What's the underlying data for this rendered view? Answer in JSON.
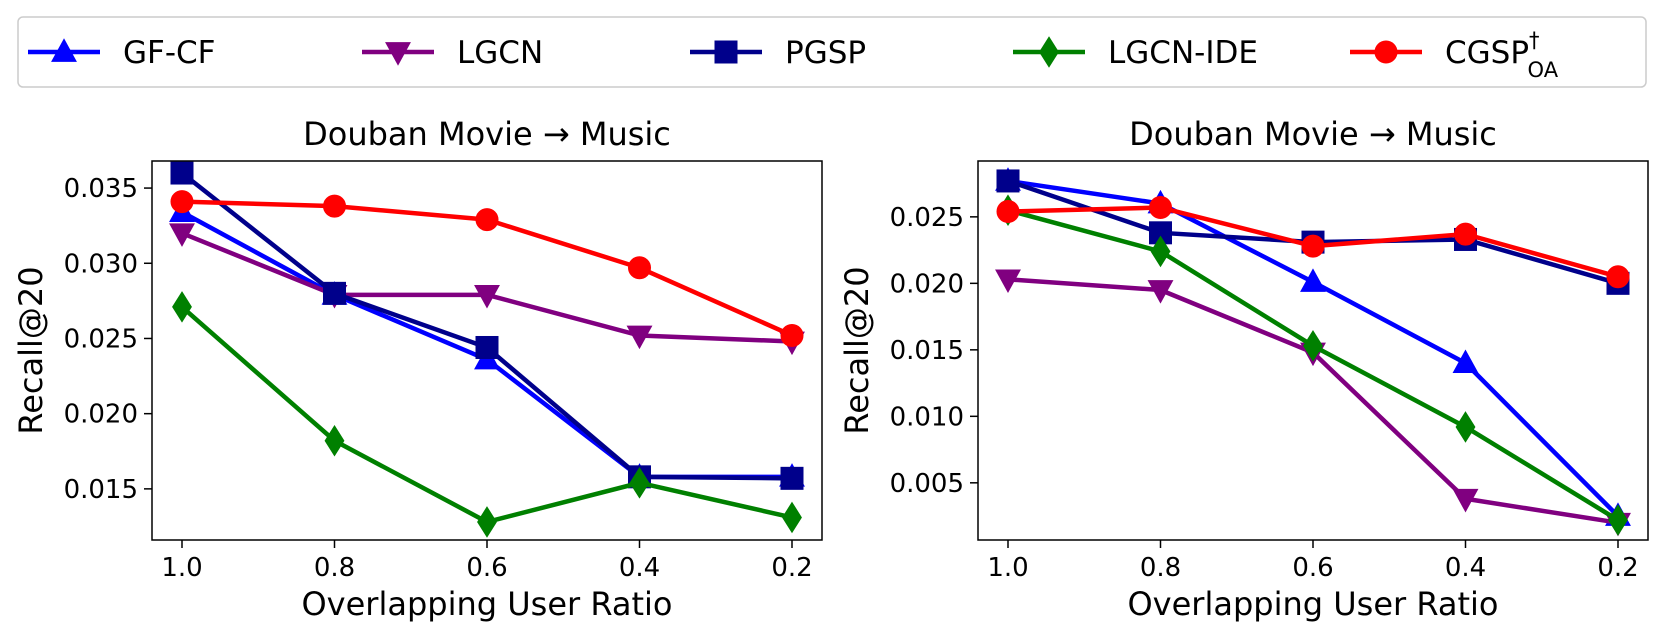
{
  "legend": [
    {
      "name": "GF-CF",
      "color": "#0000ff",
      "marker": "triangle-up",
      "label_main": "GF-CF",
      "label_sup": "",
      "label_sub": ""
    },
    {
      "name": "LGCN",
      "color": "#800080",
      "marker": "triangle-down",
      "label_main": "LGCN",
      "label_sup": "",
      "label_sub": ""
    },
    {
      "name": "PGSP",
      "color": "#00008b",
      "marker": "square",
      "label_main": "PGSP",
      "label_sup": "",
      "label_sub": ""
    },
    {
      "name": "LGCN-IDE",
      "color": "#008000",
      "marker": "diamond",
      "label_main": "LGCN-IDE",
      "label_sup": "",
      "label_sub": ""
    },
    {
      "name": "CGSP_OA^†",
      "color": "#ff0000",
      "marker": "circle",
      "label_main": "CGSP",
      "label_sup": "†",
      "label_sub": "OA"
    }
  ],
  "chart_data": [
    {
      "type": "line",
      "title": "Douban Movie → Music",
      "xlabel": "Overlapping User Ratio",
      "ylabel": "Recall@20",
      "categories": [
        "1.0",
        "0.8",
        "0.6",
        "0.4",
        "0.2"
      ],
      "ylim": [
        0.0116,
        0.0368
      ],
      "yticks": [
        0.015,
        0.02,
        0.025,
        0.03,
        0.035
      ],
      "ytick_labels": [
        "0.015",
        "0.020",
        "0.025",
        "0.030",
        "0.035"
      ],
      "series": [
        {
          "name": "GF-CF",
          "values": [
            0.0334,
            0.0279,
            0.0236,
            0.0158,
            0.0158
          ]
        },
        {
          "name": "LGCN",
          "values": [
            0.032,
            0.0279,
            0.0279,
            0.0252,
            0.0248
          ]
        },
        {
          "name": "PGSP",
          "values": [
            0.036,
            0.028,
            0.0244,
            0.0158,
            0.0157
          ]
        },
        {
          "name": "LGCN-IDE",
          "values": [
            0.0271,
            0.0182,
            0.0128,
            0.0154,
            0.0131
          ]
        },
        {
          "name": "CGSP_OA^†",
          "values": [
            0.0341,
            0.0338,
            0.0329,
            0.0297,
            0.0252
          ]
        }
      ]
    },
    {
      "type": "line",
      "title": "Douban Movie → Music",
      "xlabel": "Overlapping User Ratio",
      "ylabel": "Recall@20",
      "categories": [
        "1.0",
        "0.8",
        "0.6",
        "0.4",
        "0.2"
      ],
      "ylim": [
        0.0007,
        0.0292
      ],
      "yticks": [
        0.005,
        0.01,
        0.015,
        0.02,
        0.025
      ],
      "ytick_labels": [
        "0.005",
        "0.010",
        "0.015",
        "0.020",
        "0.025"
      ],
      "series": [
        {
          "name": "GF-CF",
          "values": [
            0.0277,
            0.026,
            0.0201,
            0.014,
            0.0025
          ]
        },
        {
          "name": "LGCN",
          "values": [
            0.0203,
            0.0195,
            0.0148,
            0.0038,
            0.002
          ]
        },
        {
          "name": "PGSP",
          "values": [
            0.0277,
            0.0238,
            0.0231,
            0.0233,
            0.02
          ]
        },
        {
          "name": "LGCN-IDE",
          "values": [
            0.0255,
            0.0224,
            0.0153,
            0.0092,
            0.0022
          ]
        },
        {
          "name": "CGSP_OA^†",
          "values": [
            0.0254,
            0.0257,
            0.0228,
            0.0237,
            0.0205
          ]
        }
      ]
    }
  ]
}
